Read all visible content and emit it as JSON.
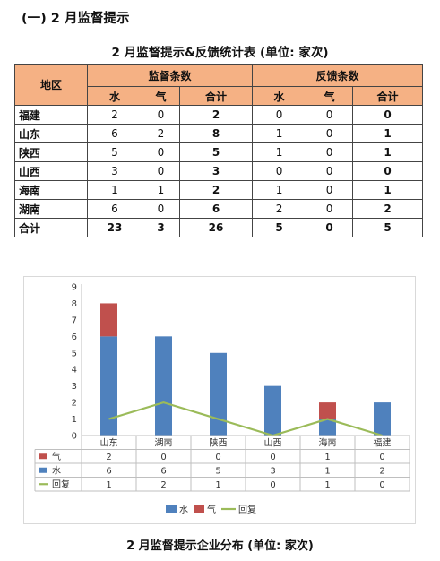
{
  "heading": "(一) 2 月监督提示",
  "table": {
    "title": "2 月监督提示&反馈统计表 (单位: 家次)",
    "region_header": "地区",
    "group1_header": "监督条数",
    "group2_header": "反馈条数",
    "sub_headers": [
      "水",
      "气",
      "合计",
      "水",
      "气",
      "合计"
    ],
    "rows": [
      {
        "region": "福建",
        "cells": [
          "2",
          "0",
          "2",
          "0",
          "0",
          "0"
        ]
      },
      {
        "region": "山东",
        "cells": [
          "6",
          "2",
          "8",
          "1",
          "0",
          "1"
        ]
      },
      {
        "region": "陕西",
        "cells": [
          "5",
          "0",
          "5",
          "1",
          "0",
          "1"
        ]
      },
      {
        "region": "山西",
        "cells": [
          "3",
          "0",
          "3",
          "0",
          "0",
          "0"
        ]
      },
      {
        "region": "海南",
        "cells": [
          "1",
          "1",
          "2",
          "1",
          "0",
          "1"
        ]
      },
      {
        "region": "湖南",
        "cells": [
          "6",
          "0",
          "6",
          "2",
          "0",
          "2"
        ]
      },
      {
        "region": "合计",
        "cells": [
          "23",
          "3",
          "26",
          "5",
          "0",
          "5"
        ]
      }
    ]
  },
  "chart_data": {
    "type": "bar",
    "stacked": true,
    "categories": [
      "山东",
      "湖南",
      "陕西",
      "山西",
      "海南",
      "福建"
    ],
    "series": [
      {
        "name": "水",
        "type": "bar",
        "color": "#4f81bd",
        "values": [
          6,
          6,
          5,
          3,
          1,
          2
        ]
      },
      {
        "name": "气",
        "type": "bar",
        "color": "#c0504d",
        "values": [
          2,
          0,
          0,
          0,
          1,
          0
        ]
      },
      {
        "name": "回复",
        "type": "line",
        "color": "#9bbb59",
        "values": [
          1,
          2,
          1,
          0,
          1,
          0
        ]
      }
    ],
    "y_ticks": [
      "0",
      "1",
      "2",
      "3",
      "4",
      "5",
      "6",
      "7",
      "8",
      "9"
    ],
    "ylim": [
      0,
      9
    ],
    "data_table": true,
    "grid": false,
    "legend_position": "bottom"
  },
  "caption": "2 月监督提示企业分布 (单位: 家次)"
}
